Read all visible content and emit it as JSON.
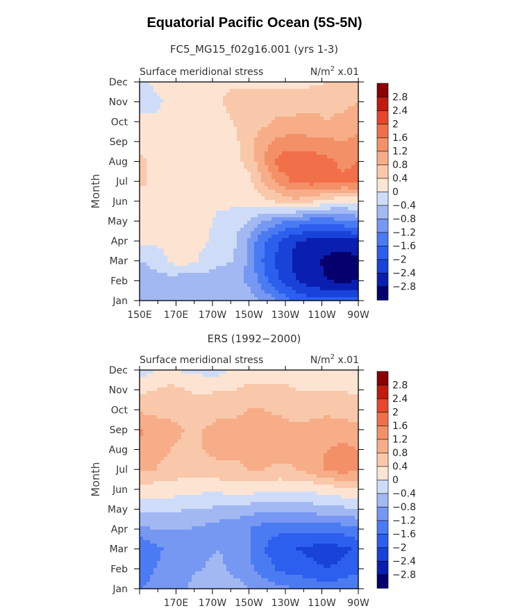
{
  "title": "Equatorial Pacific Ocean (5S-5N)",
  "chart_data": [
    {
      "type": "heatmap",
      "subtitle": "FC5_MG15_f02g16.001 (yrs 1-3)",
      "variable": "Surface meridional stress",
      "units": "N/m",
      "units_exp": "2",
      "units_scale": "x.01",
      "ylabel": "Month",
      "xticks": [
        "150E",
        "170E",
        "170W",
        "150W",
        "130W",
        "110W",
        "90W"
      ],
      "yticks": [
        "Jan",
        "Feb",
        "Mar",
        "Apr",
        "May",
        "Jun",
        "Jul",
        "Aug",
        "Sep",
        "Oct",
        "Nov",
        "Dec"
      ],
      "colorbar_labels": [
        "2.8",
        "2.4",
        "2",
        "1.6",
        "1.2",
        "0.8",
        "0.4",
        "0",
        "−0.4",
        "−0.8",
        "−1.2",
        "−1.6",
        "−2",
        "−2.4",
        "−2.8"
      ],
      "grid": [
        [
          -0.5,
          -0.5,
          -0.6,
          -0.6,
          -0.6,
          -0.6,
          -0.5,
          -0.6,
          -0.9,
          -1.3,
          -1.7,
          -1.9,
          -1.9,
          -1.9,
          -1.8
        ],
        [
          -0.6,
          -0.5,
          -0.6,
          -0.7,
          -0.6,
          -0.6,
          -0.6,
          -0.9,
          -1.5,
          -2.0,
          -2.4,
          -2.6,
          -2.8,
          -2.9,
          -2.8
        ],
        [
          -0.4,
          -0.3,
          0.1,
          0.2,
          -0.1,
          -0.3,
          -0.4,
          -0.9,
          -1.7,
          -2.2,
          -2.5,
          -2.7,
          -2.9,
          -3.0,
          -2.9
        ],
        [
          0.1,
          0.1,
          0.1,
          0.1,
          0.1,
          -0.2,
          -0.3,
          -0.9,
          -1.6,
          -2.0,
          -2.4,
          -2.5,
          -2.6,
          -2.6,
          -2.5
        ],
        [
          0.2,
          0.2,
          0.2,
          0.2,
          0.2,
          -0.1,
          -0.2,
          -0.4,
          -0.8,
          -1.1,
          -1.3,
          -1.4,
          -1.4,
          -1.3,
          -1.1
        ],
        [
          0.2,
          0.3,
          0.2,
          0.2,
          0.2,
          0.1,
          0.1,
          0.1,
          0.3,
          0.5,
          0.7,
          0.5,
          0.2,
          0.1,
          0.1
        ],
        [
          0.5,
          0.3,
          0.2,
          0.2,
          0.2,
          0.2,
          0.2,
          0.3,
          0.9,
          1.4,
          1.7,
          1.8,
          1.8,
          1.7,
          1.8
        ],
        [
          0.5,
          0.3,
          0.2,
          0.2,
          0.2,
          0.2,
          0.3,
          0.5,
          1.2,
          1.8,
          1.9,
          1.9,
          1.7,
          1.5,
          1.6
        ],
        [
          0.2,
          0.2,
          0.2,
          0.2,
          0.2,
          0.2,
          0.3,
          0.6,
          1.1,
          1.3,
          1.4,
          1.3,
          1.3,
          1.2,
          1.3
        ],
        [
          0.1,
          0.1,
          0.2,
          0.2,
          0.2,
          0.2,
          0.4,
          0.6,
          0.7,
          0.9,
          0.9,
          0.9,
          0.8,
          0.9,
          1.0
        ],
        [
          -0.1,
          -0.1,
          0.1,
          0.2,
          0.2,
          0.3,
          0.6,
          0.6,
          0.6,
          0.6,
          0.6,
          0.7,
          0.7,
          0.7,
          0.8
        ],
        [
          -0.2,
          0.1,
          0.1,
          0.2,
          0.2,
          0.3,
          0.3,
          0.3,
          0.3,
          0.3,
          0.3,
          0.3,
          0.4,
          0.5,
          0.6
        ]
      ]
    },
    {
      "type": "heatmap",
      "subtitle": "ERS (1992−2000)",
      "variable": "Surface meridional stress",
      "units": "N/m",
      "units_exp": "2",
      "units_scale": "x.01",
      "ylabel": "Month",
      "xticks": [
        "",
        "170E",
        "170W",
        "150W",
        "130W",
        "110W",
        "90W"
      ],
      "yticks": [
        "Jan",
        "Feb",
        "Mar",
        "Apr",
        "May",
        "Jun",
        "Jul",
        "Aug",
        "Sep",
        "Oct",
        "Nov",
        "Dec"
      ],
      "colorbar_labels": [
        "2.8",
        "2.4",
        "2",
        "1.6",
        "1.2",
        "0.8",
        "0.4",
        "0",
        "−0.4",
        "−0.8",
        "−1.2",
        "−1.6",
        "−2",
        "−2.4",
        "−2.8"
      ],
      "grid": [
        [
          -1.2,
          -1.1,
          -0.9,
          -0.8,
          -0.6,
          -0.5,
          -0.6,
          -0.8,
          -1.0,
          -1.1,
          -1.2,
          -1.3,
          -1.4,
          -1.3,
          -1.2
        ],
        [
          -1.4,
          -1.2,
          -1.0,
          -0.9,
          -0.8,
          -0.7,
          -0.9,
          -1.1,
          -1.4,
          -1.7,
          -1.8,
          -1.9,
          -2.0,
          -1.9,
          -1.7
        ],
        [
          -1.6,
          -1.3,
          -1.1,
          -1.0,
          -0.9,
          -0.8,
          -0.9,
          -1.2,
          -1.6,
          -1.9,
          -2.0,
          -2.1,
          -2.2,
          -2.1,
          -1.9
        ],
        [
          -0.9,
          -0.8,
          -0.8,
          -0.8,
          -0.9,
          -1.0,
          -1.1,
          -1.2,
          -1.4,
          -1.5,
          -1.5,
          -1.5,
          -1.5,
          -1.4,
          -1.3
        ],
        [
          -0.3,
          -0.3,
          -0.3,
          -0.4,
          -0.4,
          -0.5,
          -0.5,
          -0.6,
          -0.7,
          -0.7,
          -0.6,
          -0.6,
          -0.5,
          -0.5,
          -0.4
        ],
        [
          0.3,
          0.2,
          0.2,
          0.1,
          0.1,
          0.1,
          0.2,
          0.2,
          0.1,
          0.1,
          0.1,
          0.1,
          0.2,
          0.3,
          0.3
        ],
        [
          0.9,
          0.8,
          0.7,
          0.6,
          0.6,
          0.7,
          0.7,
          0.8,
          0.8,
          0.7,
          0.8,
          1.0,
          1.3,
          1.4,
          1.3
        ],
        [
          1.0,
          0.9,
          0.8,
          0.7,
          0.8,
          0.9,
          0.9,
          0.9,
          1.0,
          1.0,
          0.9,
          1.0,
          1.2,
          1.3,
          1.2
        ],
        [
          1.3,
          1.0,
          0.9,
          0.8,
          0.8,
          0.9,
          0.9,
          1.0,
          1.0,
          1.0,
          0.9,
          0.9,
          1.0,
          1.0,
          0.9
        ],
        [
          0.7,
          0.7,
          0.7,
          0.6,
          0.6,
          0.7,
          0.7,
          0.8,
          0.8,
          0.7,
          0.6,
          0.7,
          0.7,
          0.6,
          0.6
        ],
        [
          0.3,
          0.4,
          0.5,
          0.4,
          0.3,
          0.4,
          0.4,
          0.5,
          0.5,
          0.5,
          0.4,
          0.4,
          0.4,
          0.4,
          0.3
        ],
        [
          -0.2,
          0.0,
          0.1,
          -0.1,
          -0.1,
          -0.2,
          0.1,
          0.2,
          0.2,
          0.2,
          0.2,
          0.1,
          0.1,
          0.1,
          0.1
        ]
      ]
    }
  ],
  "colors": {
    "levels": [
      "#06006e",
      "#0a1fb0",
      "#1842d8",
      "#2c5fee",
      "#4a7bf2",
      "#7697f2",
      "#a2b8f3",
      "#cfdcf8",
      "#fde4d2",
      "#f9c8aa",
      "#f6ad88",
      "#f39068",
      "#f1704a",
      "#e7472a",
      "#c11b10",
      "#8a0000"
    ]
  }
}
